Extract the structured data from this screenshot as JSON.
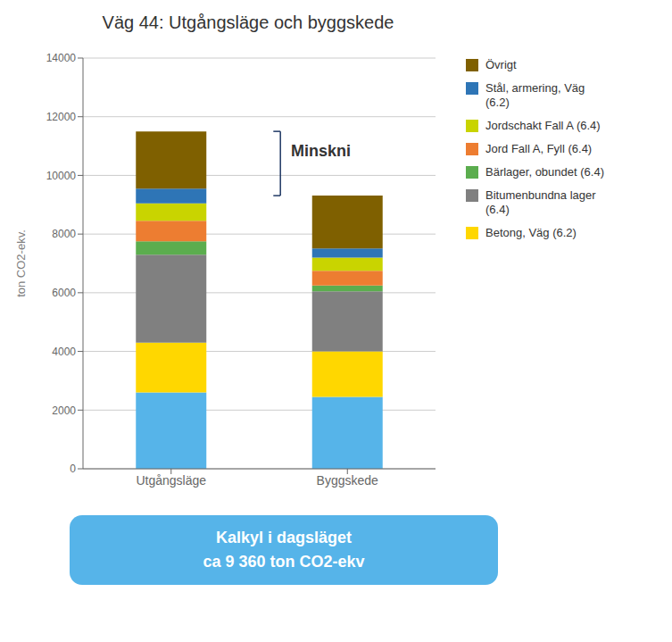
{
  "chart_data": {
    "type": "bar",
    "title": "Väg 44: Utgångsläge och byggskede",
    "ylabel": "ton CO2-ekv.",
    "categories": [
      "Utgångsläge",
      "Byggskede"
    ],
    "series": [
      {
        "color": "#56B4E9",
        "values": [
          2600,
          2450
        ]
      },
      {
        "name": "Betong, Väg (6.2)",
        "color": "#FFD700",
        "values": [
          1700,
          1550
        ]
      },
      {
        "name": "Bitumenbundna lager\n(6.4)",
        "color": "#808080",
        "values": [
          3000,
          2050
        ]
      },
      {
        "name": "Bärlager, obundet (6.4)",
        "color": "#5BAD4E",
        "values": [
          450,
          200
        ]
      },
      {
        "name": "Jord Fall A, Fyll (6.4)",
        "color": "#ED7D31",
        "values": [
          700,
          500
        ]
      },
      {
        "name": "Jordschakt Fall A (6.4)",
        "color": "#C9D400",
        "values": [
          600,
          450
        ]
      },
      {
        "name": "Stål, armering, Väg\n(6.2)",
        "color": "#2E75B6",
        "values": [
          500,
          310
        ]
      },
      {
        "name": "Övrigt",
        "color": "#7F6000",
        "values": [
          1950,
          1800
        ]
      }
    ],
    "stacked": true,
    "ylim": [
      0,
      14000
    ],
    "yticks": [
      0,
      2000,
      4000,
      6000,
      8000,
      10000,
      12000,
      14000
    ],
    "grid": true,
    "legend": "right",
    "annotations": [
      {
        "text": "Minskni"
      },
      {
        "text": "Kalkyl i dagsläget\nca 9 360 ton CO2-ekv",
        "color": "#56B4E9"
      }
    ]
  }
}
